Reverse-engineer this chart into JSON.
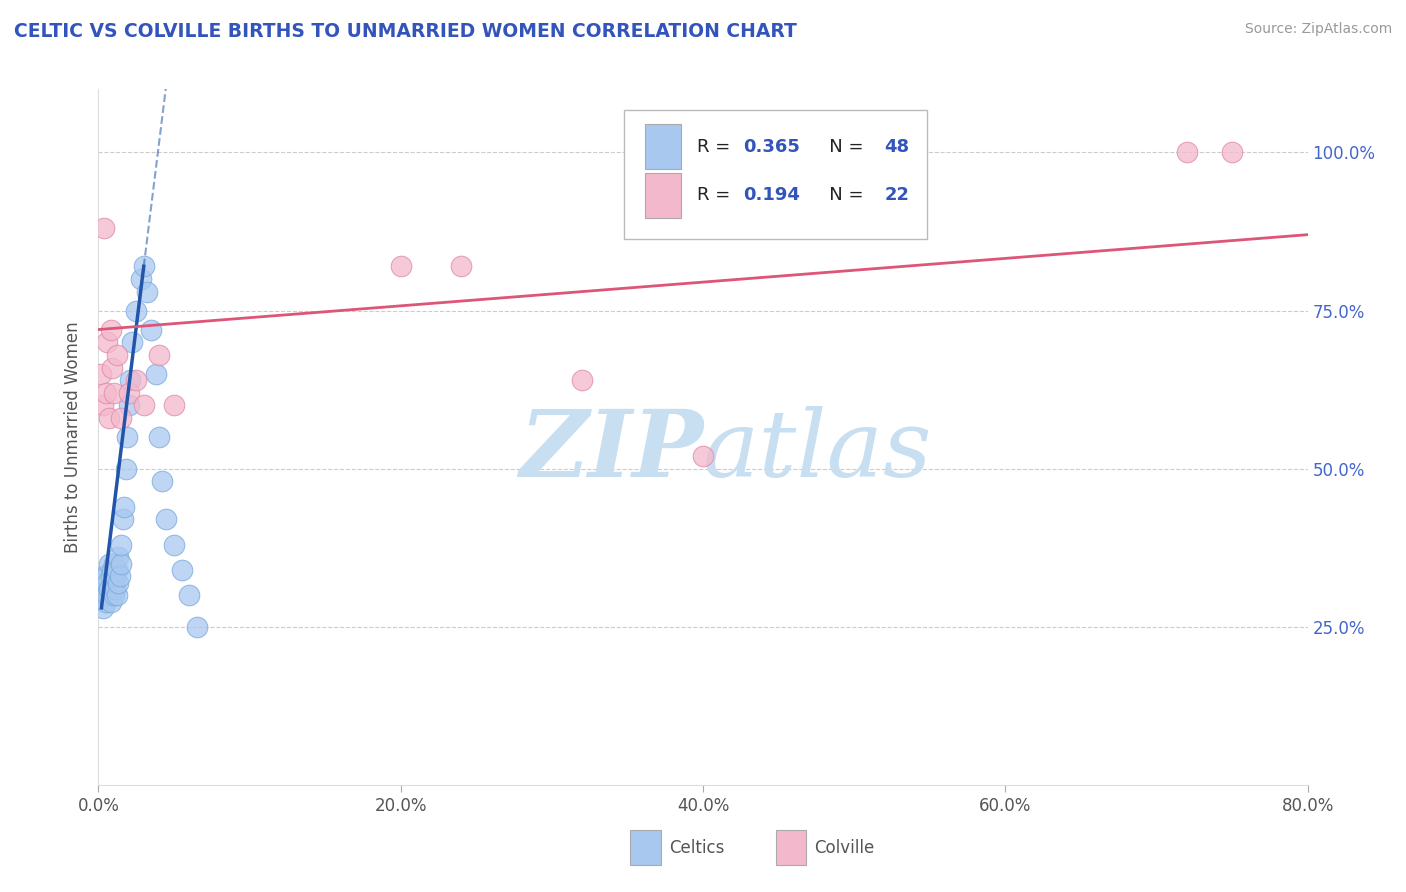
{
  "title": "CELTIC VS COLVILLE BIRTHS TO UNMARRIED WOMEN CORRELATION CHART",
  "source": "Source: ZipAtlas.com",
  "ylabel": "Births to Unmarried Women",
  "xlim": [
    0.0,
    0.8
  ],
  "ylim": [
    0.0,
    1.1
  ],
  "xticks": [
    0.0,
    0.2,
    0.4,
    0.6,
    0.8
  ],
  "xtick_labels": [
    "0.0%",
    "20.0%",
    "40.0%",
    "60.0%",
    "80.0%"
  ],
  "yticks": [
    0.25,
    0.5,
    0.75,
    1.0
  ],
  "ytick_labels": [
    "25.0%",
    "50.0%",
    "75.0%",
    "100.0%"
  ],
  "celtics_R": 0.365,
  "celtics_N": 48,
  "colville_R": 0.194,
  "colville_N": 22,
  "celtics_color": "#a8c8f0",
  "celtics_edge_color": "#7aabde",
  "celtics_line_color": "#2255aa",
  "colville_color": "#f4b8cc",
  "colville_edge_color": "#e08aaa",
  "colville_line_color": "#dd5577",
  "watermark_color": "#cce4f6",
  "background_color": "#ffffff",
  "grid_color": "#cccccc",
  "title_color": "#3355bb",
  "right_tick_color": "#4466cc",
  "celtics_x": [
    0.002,
    0.003,
    0.003,
    0.004,
    0.004,
    0.005,
    0.005,
    0.005,
    0.006,
    0.006,
    0.007,
    0.007,
    0.008,
    0.008,
    0.009,
    0.009,
    0.01,
    0.01,
    0.01,
    0.011,
    0.011,
    0.012,
    0.012,
    0.013,
    0.013,
    0.014,
    0.015,
    0.015,
    0.016,
    0.017,
    0.018,
    0.019,
    0.02,
    0.021,
    0.022,
    0.025,
    0.028,
    0.03,
    0.032,
    0.035,
    0.038,
    0.04,
    0.042,
    0.045,
    0.05,
    0.055,
    0.06,
    0.065
  ],
  "celtics_y": [
    0.3,
    0.28,
    0.32,
    0.3,
    0.33,
    0.29,
    0.31,
    0.33,
    0.3,
    0.32,
    0.31,
    0.35,
    0.29,
    0.33,
    0.31,
    0.34,
    0.3,
    0.32,
    0.35,
    0.31,
    0.33,
    0.3,
    0.34,
    0.32,
    0.36,
    0.33,
    0.35,
    0.38,
    0.42,
    0.44,
    0.5,
    0.55,
    0.6,
    0.64,
    0.7,
    0.75,
    0.8,
    0.82,
    0.78,
    0.72,
    0.65,
    0.55,
    0.48,
    0.42,
    0.38,
    0.34,
    0.3,
    0.25
  ],
  "celtics_x_line_start": 0.002,
  "celtics_x_line_solid_end": 0.03,
  "celtics_x_line_dash_end": 0.08,
  "colville_x": [
    0.002,
    0.003,
    0.004,
    0.005,
    0.006,
    0.007,
    0.008,
    0.009,
    0.01,
    0.012,
    0.015,
    0.02,
    0.025,
    0.03,
    0.04,
    0.05,
    0.2,
    0.24,
    0.32,
    0.4,
    0.72,
    0.75
  ],
  "colville_y": [
    0.65,
    0.6,
    0.88,
    0.62,
    0.7,
    0.58,
    0.72,
    0.66,
    0.62,
    0.68,
    0.58,
    0.62,
    0.64,
    0.6,
    0.68,
    0.6,
    0.82,
    0.82,
    0.64,
    0.52,
    1.0,
    1.0
  ]
}
